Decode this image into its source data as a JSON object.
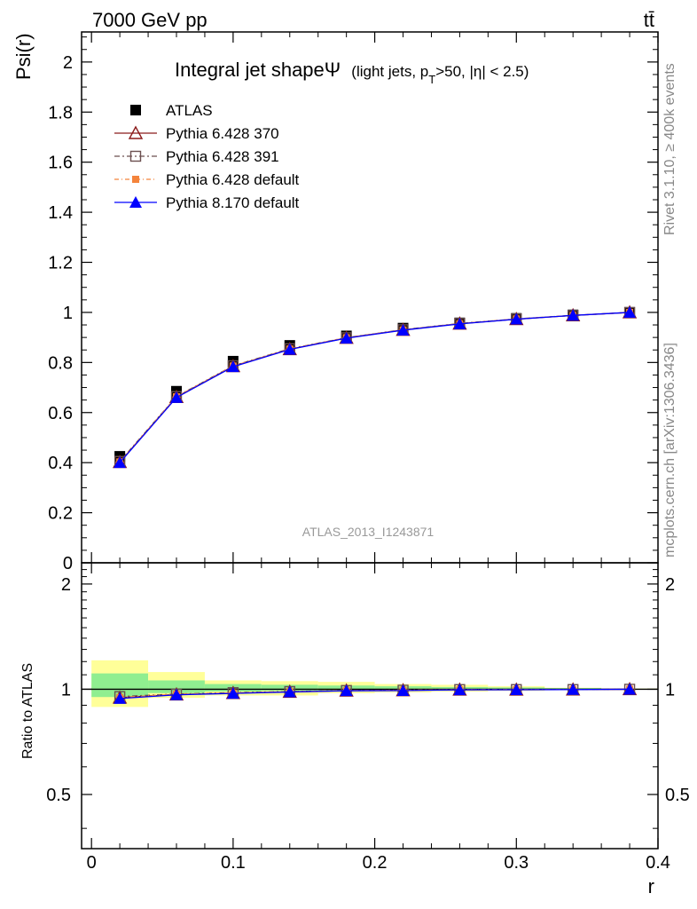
{
  "header": {
    "left": "7000 GeV pp",
    "right": "tt̄"
  },
  "side_labels": {
    "rivet": "Rivet 3.1.10, ≥ 400k events",
    "mcplots": "mcplots.cern.ch [arXiv:1306.3436]"
  },
  "chart_data": [
    {
      "type": "line",
      "title": "Integral jet shapeΨ",
      "subtitle": "(light jets, p",
      "subtitle_sub": "T",
      "subtitle_rest": ">50, |η| < 2.5)",
      "xlabel": "r",
      "ylabel": "Psi(r)",
      "watermark": "ATLAS_2013_I1243871",
      "xlim": [
        -0.007,
        0.4
      ],
      "ylim": [
        0,
        2.12
      ],
      "x_ticks": [
        "0",
        "0.1",
        "0.2",
        "0.3",
        "0.4"
      ],
      "y_ticks": [
        "0",
        "0.2",
        "0.4",
        "0.6",
        "0.8",
        "1",
        "1.2",
        "1.4",
        "1.6",
        "1.8",
        "2"
      ],
      "legend_position": "top-left",
      "x": [
        0.02,
        0.06,
        0.1,
        0.14,
        0.18,
        0.22,
        0.26,
        0.3,
        0.34,
        0.38
      ],
      "series": [
        {
          "name": "ATLAS",
          "color": "#000000",
          "marker": "square",
          "values": [
            0.425,
            0.685,
            0.805,
            0.868,
            0.906,
            0.937,
            0.958,
            0.976,
            0.99,
            1.0
          ]
        },
        {
          "name": "Pythia 6.428 370",
          "color": "#8b1a1a",
          "marker": "triangle-open",
          "values": [
            0.402,
            0.662,
            0.785,
            0.853,
            0.898,
            0.93,
            0.955,
            0.973,
            0.988,
            1.0
          ]
        },
        {
          "name": "Pythia 6.428 391",
          "color": "#6b4f4f",
          "marker": "square-open",
          "values": [
            0.405,
            0.664,
            0.787,
            0.855,
            0.899,
            0.931,
            0.956,
            0.974,
            0.988,
            1.0
          ]
        },
        {
          "name": "Pythia 6.428 default",
          "color": "#f4843c",
          "marker": "square-small",
          "values": [
            0.403,
            0.663,
            0.786,
            0.854,
            0.899,
            0.93,
            0.955,
            0.974,
            0.988,
            1.0
          ]
        },
        {
          "name": "Pythia 8.170 default",
          "color": "#0000ff",
          "marker": "triangle",
          "values": [
            0.4,
            0.66,
            0.783,
            0.852,
            0.897,
            0.929,
            0.954,
            0.973,
            0.988,
            1.0
          ]
        }
      ]
    },
    {
      "type": "line",
      "ylabel": "Ratio to ATLAS",
      "xlim": [
        -0.007,
        0.4
      ],
      "ylim": [
        0.35,
        2.3
      ],
      "x_ticks": [
        "0",
        "0.1",
        "0.2",
        "0.3",
        "0.4"
      ],
      "y_ticks": [
        "0.5",
        "1",
        "2"
      ],
      "x": [
        0.02,
        0.06,
        0.1,
        0.14,
        0.18,
        0.22,
        0.26,
        0.3,
        0.34,
        0.38
      ],
      "bins": [
        [
          0,
          0.04
        ],
        [
          0.04,
          0.08
        ],
        [
          0.08,
          0.12
        ],
        [
          0.12,
          0.16
        ],
        [
          0.16,
          0.2
        ],
        [
          0.2,
          0.24
        ],
        [
          0.24,
          0.28
        ],
        [
          0.28,
          0.32
        ],
        [
          0.32,
          0.36
        ],
        [
          0.36,
          0.4
        ]
      ],
      "band_stat": [
        [
          0.95,
          1.11
        ],
        [
          0.975,
          1.06
        ],
        [
          0.985,
          1.035
        ],
        [
          0.99,
          1.03
        ],
        [
          0.99,
          1.025
        ],
        [
          0.992,
          1.02
        ],
        [
          0.995,
          1.015
        ],
        [
          0.996,
          1.012
        ],
        [
          0.998,
          1.008
        ],
        [
          0.999,
          1.003
        ]
      ],
      "band_total": [
        [
          0.89,
          1.21
        ],
        [
          0.945,
          1.12
        ],
        [
          0.96,
          1.06
        ],
        [
          0.96,
          1.055
        ],
        [
          0.975,
          1.05
        ],
        [
          0.98,
          1.035
        ],
        [
          0.985,
          1.03
        ],
        [
          0.99,
          1.02
        ],
        [
          0.995,
          1.01
        ],
        [
          0.998,
          1.005
        ]
      ],
      "colors": {
        "band_stat": "#90ee90",
        "band_total": "#ffff99"
      },
      "series": [
        {
          "name": "Pythia 6.428 370",
          "color": "#8b1a1a",
          "marker": "triangle-open",
          "values": [
            0.946,
            0.966,
            0.975,
            0.983,
            0.991,
            0.993,
            0.997,
            0.997,
            0.998,
            1.0
          ]
        },
        {
          "name": "Pythia 6.428 391",
          "color": "#6b4f4f",
          "marker": "square-open",
          "values": [
            0.953,
            0.969,
            0.978,
            0.985,
            0.992,
            0.994,
            0.998,
            0.998,
            0.998,
            1.0
          ]
        },
        {
          "name": "Pythia 6.428 default",
          "color": "#f4843c",
          "marker": "square-small",
          "values": [
            0.948,
            0.968,
            0.976,
            0.984,
            0.992,
            0.993,
            0.997,
            0.998,
            0.998,
            1.0
          ]
        },
        {
          "name": "Pythia 8.170 default",
          "color": "#0000ff",
          "marker": "triangle",
          "values": [
            0.941,
            0.964,
            0.973,
            0.982,
            0.99,
            0.991,
            0.996,
            0.997,
            0.998,
            1.0
          ]
        }
      ]
    }
  ]
}
